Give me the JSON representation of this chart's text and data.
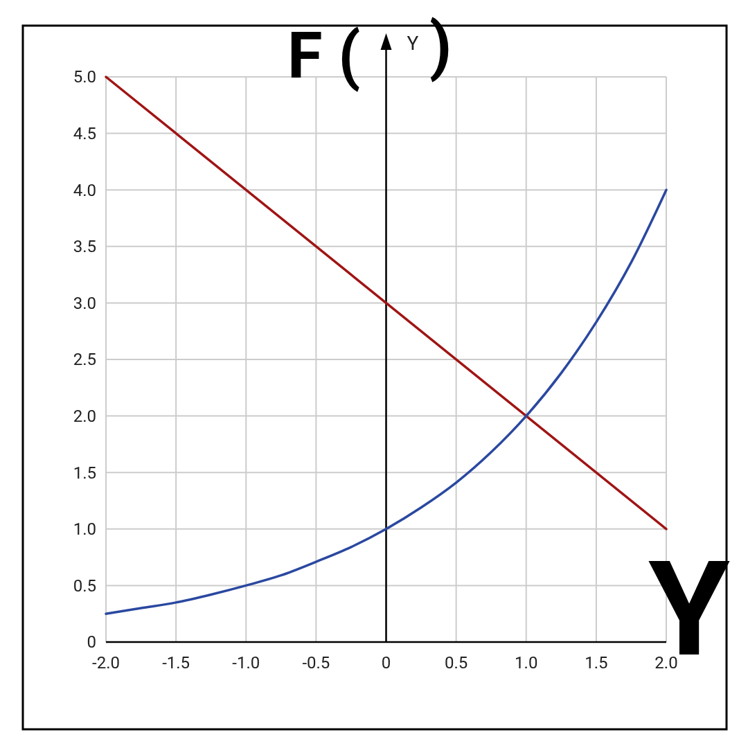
{
  "chart_data": {
    "type": "line",
    "xlabel": "Y",
    "ylabel": "Y",
    "annotations": [
      "F (",
      ")"
    ],
    "xlim": [
      -2,
      2
    ],
    "ylim": [
      0,
      5
    ],
    "xticks": [
      {
        "value": -2,
        "label": "-2.0"
      },
      -1.5,
      {
        "value": -1,
        "label": "-1.0"
      },
      -0.5,
      0,
      0.5,
      {
        "value": 1,
        "label": "1.0"
      },
      1.5,
      {
        "value": 2,
        "label": "2.0"
      }
    ],
    "yticks": [
      0,
      0.5,
      {
        "value": 1,
        "label": "1.0"
      },
      1.5,
      {
        "value": 2,
        "label": "2.0"
      },
      2.5,
      {
        "value": 3,
        "label": "3.0"
      },
      3.5,
      {
        "value": 4,
        "label": "4.0"
      },
      4.5,
      {
        "value": 5,
        "label": "5.0"
      }
    ],
    "grid": true,
    "marker": "none",
    "line_style": "solid",
    "series": [
      {
        "color": "#a01414",
        "x": [
          -2,
          2
        ],
        "values": [
          5,
          1
        ]
      },
      {
        "color": "#2a48a0",
        "x": [
          -2,
          -1.75,
          -1.5,
          -1.25,
          -1,
          -0.75,
          -0.5,
          -0.25,
          0,
          0.25,
          0.5,
          0.75,
          1,
          1.25,
          1.5,
          1.75,
          2
        ],
        "values": [
          0.25,
          0.3,
          0.35,
          0.42,
          0.5,
          0.59,
          0.71,
          0.84,
          1,
          1.19,
          1.41,
          1.68,
          2,
          2.38,
          2.83,
          3.36,
          4
        ]
      }
    ]
  }
}
